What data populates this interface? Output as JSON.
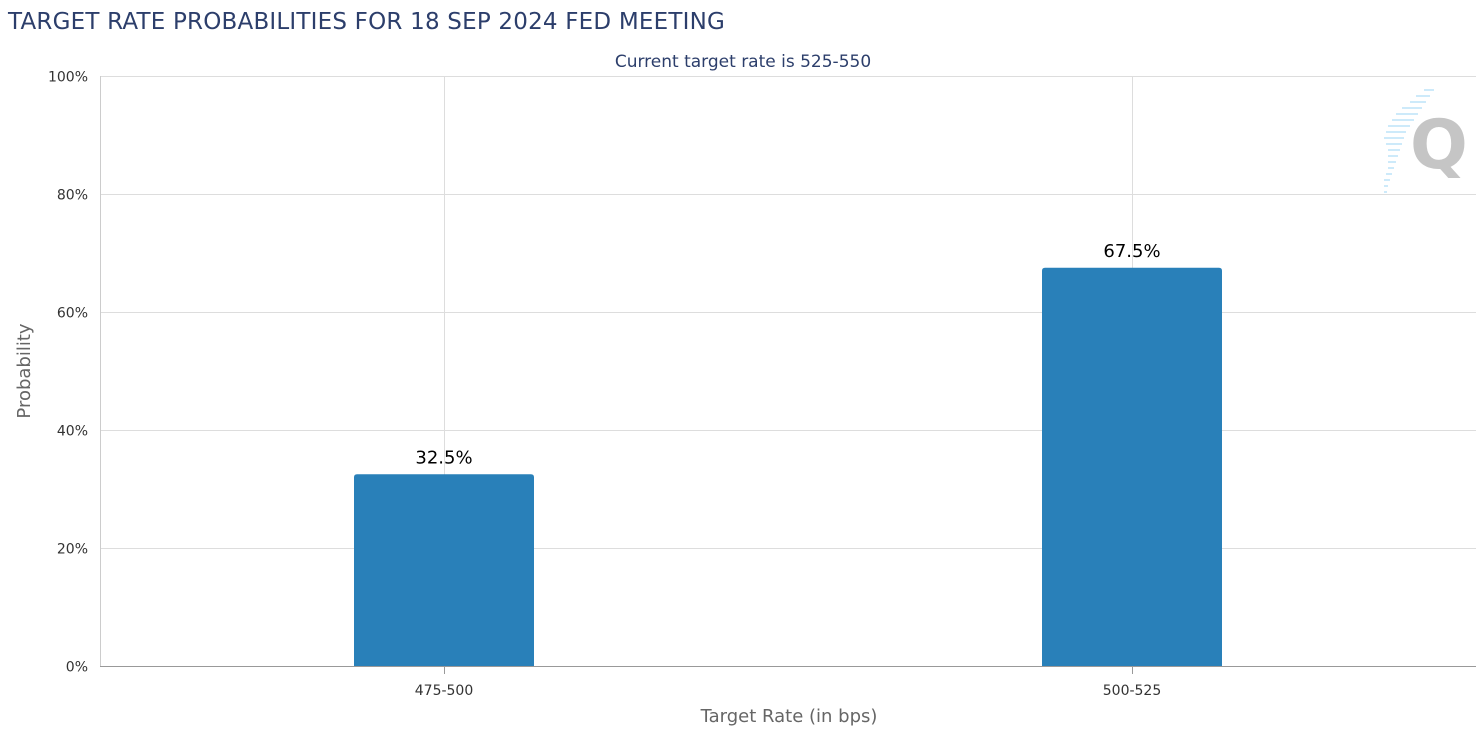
{
  "page": {
    "title": "TARGET RATE PROBABILITIES FOR 18 SEP 2024 FED MEETING"
  },
  "colors": {
    "bar": "#2980b9",
    "grid": "#dddddd",
    "title": "#2c3e6b",
    "axis_text": "#333333",
    "axis_title": "#666666"
  },
  "chart_data": {
    "type": "bar",
    "subtitle": "Current target rate is 525-550",
    "categories": [
      "475-500",
      "500-525"
    ],
    "values": [
      32.5,
      67.5
    ],
    "data_labels": [
      "32.5%",
      "67.5%"
    ],
    "xlabel": "Target Rate (in bps)",
    "ylabel": "Probability",
    "ylim": [
      0,
      100
    ],
    "yticks": [
      0,
      20,
      40,
      60,
      80,
      100
    ],
    "ytick_labels": [
      "0%",
      "20%",
      "40%",
      "60%",
      "80%",
      "100%"
    ],
    "grid": true,
    "legend": "none"
  }
}
